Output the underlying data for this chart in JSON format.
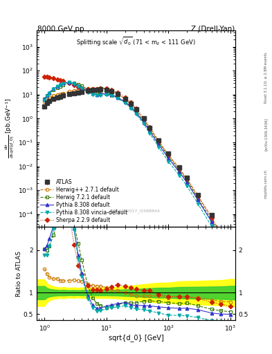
{
  "title_top_left": "8000 GeV pp",
  "title_top_right": "Z (Drell-Yan)",
  "plot_title": "Splitting scale $\\sqrt{d_0}$ (71 < m$_{ll}$ < 111 GeV)",
  "xlabel": "sqrt{d_0} [GeV]",
  "ylabel_main": "$\\frac{d\\sigma}{dsqrt(d\\_0)}$ [pb,GeV$^{-1}$]",
  "ylabel_ratio": "Ratio to ATLAS",
  "watermark": "ATLAS_2017_I1589844",
  "rivet_label": "Rivet 3.1.10; ≥ 2.8M events",
  "arxiv_label": "[arXiv:1306.3436]",
  "mcplots_label": "mcplots.cern.ch",
  "xlim": [
    0.75,
    1200
  ],
  "ylim_main": [
    3e-05,
    5000
  ],
  "ylim_ratio": [
    0.35,
    2.55
  ],
  "atlas_x": [
    1.0,
    1.1,
    1.2,
    1.4,
    1.6,
    1.8,
    2.0,
    2.5,
    3.0,
    3.5,
    4.0,
    5.0,
    6.0,
    7.0,
    8.0,
    10.0,
    12.0,
    15.0,
    20.0,
    25.0,
    30.0,
    40.0,
    50.0,
    70.0,
    100.0,
    150.0,
    200.0,
    300.0,
    500.0,
    700.0,
    1000.0
  ],
  "atlas_y": [
    3.2,
    4.5,
    5.5,
    6.8,
    7.5,
    8.2,
    9.0,
    10.5,
    11.5,
    12.5,
    13.0,
    14.5,
    15.5,
    16.0,
    16.5,
    16.0,
    14.0,
    10.5,
    6.5,
    4.2,
    2.5,
    1.0,
    0.42,
    0.12,
    0.034,
    0.009,
    0.0033,
    0.00065,
    9e-05,
    1.7e-05,
    2.8e-06
  ],
  "atlas_yerr_lo": [
    0.5,
    0.5,
    0.5,
    0.5,
    0.5,
    0.5,
    0.6,
    0.6,
    0.7,
    0.7,
    0.8,
    0.9,
    0.9,
    1.0,
    1.0,
    1.0,
    0.9,
    0.7,
    0.5,
    0.35,
    0.22,
    0.1,
    0.045,
    0.014,
    0.004,
    0.0012,
    0.00045,
    9e-05,
    1.3e-05,
    2.5e-06,
    4.5e-07
  ],
  "atlas_yerr_hi": [
    0.5,
    0.5,
    0.5,
    0.5,
    0.5,
    0.5,
    0.6,
    0.6,
    0.7,
    0.7,
    0.8,
    0.9,
    0.9,
    1.0,
    1.0,
    1.0,
    0.9,
    0.7,
    0.5,
    0.35,
    0.22,
    0.1,
    0.045,
    0.014,
    0.004,
    0.0012,
    0.00045,
    9e-05,
    1.3e-05,
    2.5e-06,
    4.5e-07
  ],
  "herwig271_x": [
    1.0,
    1.1,
    1.2,
    1.4,
    1.6,
    1.8,
    2.0,
    2.5,
    3.0,
    3.5,
    4.0,
    5.0,
    6.0,
    7.0,
    8.0,
    10.0,
    12.0,
    15.0,
    20.0,
    25.0,
    30.0,
    40.0,
    50.0,
    70.0,
    100.0,
    150.0,
    200.0,
    300.0,
    500.0,
    700.0,
    1000.0
  ],
  "herwig271_y": [
    5.0,
    6.5,
    7.5,
    9.0,
    10.0,
    10.5,
    11.5,
    13.5,
    15.0,
    16.0,
    16.5,
    17.5,
    18.0,
    18.5,
    19.0,
    18.0,
    15.0,
    11.0,
    6.5,
    4.0,
    2.3,
    0.92,
    0.39,
    0.11,
    0.03,
    0.0082,
    0.0029,
    0.00058,
    7.5e-05,
    1.35e-05,
    2.2e-06
  ],
  "herwig721_x": [
    1.0,
    1.1,
    1.2,
    1.4,
    1.6,
    1.8,
    2.0,
    2.5,
    3.0,
    3.5,
    4.0,
    5.0,
    6.0,
    7.0,
    8.0,
    10.0,
    12.0,
    15.0,
    20.0,
    25.0,
    30.0,
    40.0,
    50.0,
    70.0,
    100.0,
    150.0,
    200.0,
    300.0,
    500.0,
    700.0,
    1000.0
  ],
  "herwig721_y": [
    6.5,
    9.0,
    11.5,
    16.0,
    19.5,
    22.5,
    25.5,
    30.0,
    30.0,
    27.0,
    23.0,
    17.0,
    13.5,
    12.0,
    11.5,
    10.5,
    9.5,
    7.5,
    5.0,
    3.2,
    1.9,
    0.8,
    0.34,
    0.095,
    0.026,
    0.0067,
    0.0025,
    0.00045,
    5.5e-05,
    9.8e-06,
    1.55e-06
  ],
  "pythia8308_x": [
    1.0,
    1.1,
    1.2,
    1.4,
    1.6,
    1.8,
    2.0,
    2.5,
    3.0,
    3.5,
    4.0,
    5.0,
    6.0,
    7.0,
    8.0,
    10.0,
    12.0,
    15.0,
    20.0,
    25.0,
    30.0,
    40.0,
    50.0,
    70.0,
    100.0,
    150.0,
    200.0,
    300.0,
    500.0,
    700.0,
    1000.0
  ],
  "pythia8308_y": [
    6.5,
    9.5,
    12.5,
    17.5,
    22.0,
    26.5,
    30.0,
    33.0,
    29.0,
    23.5,
    19.0,
    13.5,
    11.0,
    10.0,
    10.5,
    11.0,
    10.0,
    7.8,
    5.0,
    3.0,
    1.75,
    0.7,
    0.29,
    0.08,
    0.022,
    0.0057,
    0.0021,
    0.00039,
    4.7e-05,
    8.5e-06,
    1.38e-06
  ],
  "pythia8308v_x": [
    1.0,
    1.1,
    1.2,
    1.4,
    1.6,
    1.8,
    2.0,
    2.5,
    3.0,
    3.5,
    4.0,
    5.0,
    6.0,
    7.0,
    8.0,
    10.0,
    12.0,
    15.0,
    20.0,
    25.0,
    30.0,
    40.0,
    50.0,
    70.0,
    100.0,
    150.0,
    200.0,
    300.0,
    500.0,
    700.0,
    1000.0
  ],
  "pythia8308v_y": [
    6.0,
    8.5,
    11.5,
    17.0,
    21.5,
    25.5,
    29.0,
    32.0,
    28.5,
    22.5,
    18.0,
    12.5,
    10.0,
    9.0,
    9.5,
    10.0,
    9.0,
    7.0,
    4.5,
    2.7,
    1.55,
    0.6,
    0.24,
    0.063,
    0.016,
    0.0042,
    0.0015,
    0.00027,
    3.1e-05,
    5.5e-06,
    8.5e-07
  ],
  "sherpa229_x": [
    1.0,
    1.1,
    1.2,
    1.4,
    1.6,
    1.8,
    2.0,
    2.5,
    3.0,
    3.5,
    4.0,
    5.0,
    6.0,
    7.0,
    8.0,
    10.0,
    12.0,
    15.0,
    20.0,
    25.0,
    30.0,
    40.0,
    50.0,
    70.0,
    100.0,
    150.0,
    200.0,
    300.0,
    500.0,
    700.0,
    1000.0
  ],
  "sherpa229_y": [
    55.0,
    55.0,
    52.0,
    48.0,
    44.0,
    40.0,
    37.0,
    30.0,
    24.5,
    20.5,
    18.5,
    17.0,
    16.5,
    17.0,
    17.5,
    17.5,
    16.0,
    12.5,
    7.5,
    4.7,
    2.7,
    1.05,
    0.44,
    0.115,
    0.031,
    0.0082,
    0.003,
    0.00056,
    7e-05,
    1.25e-05,
    1.9e-06
  ],
  "atlas_color": "#333333",
  "herwig271_color": "#cc7700",
  "herwig721_color": "#337700",
  "pythia8308_color": "#3333cc",
  "pythia8308v_color": "#00aaaa",
  "sherpa229_color": "#cc2200",
  "band_green_r": 0.25,
  "band_green_x_start": 1.0,
  "bg_color": "#ffffff"
}
